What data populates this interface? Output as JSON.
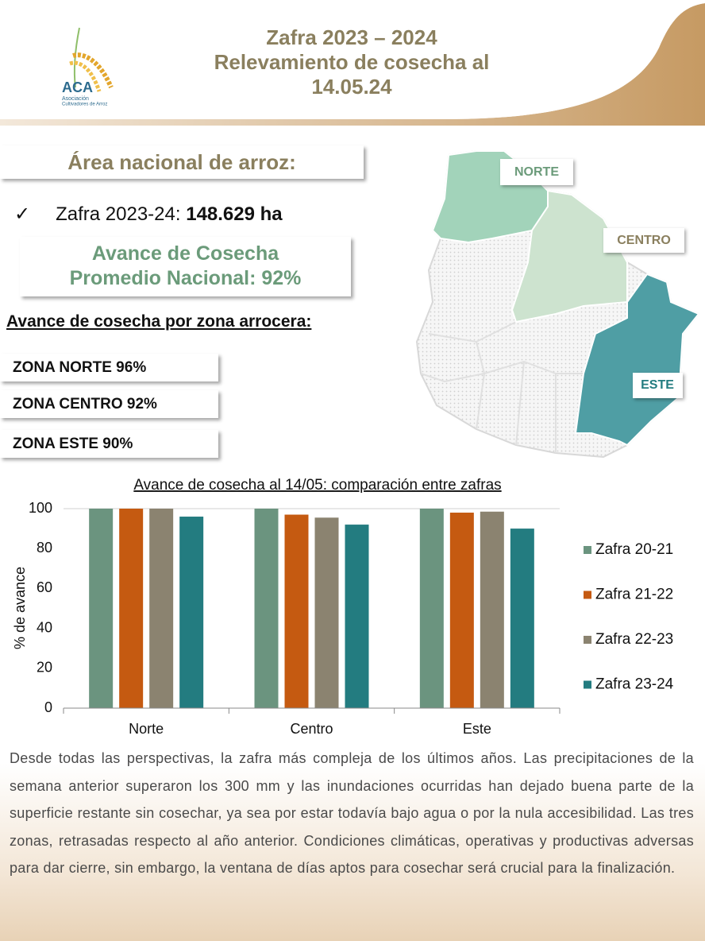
{
  "header": {
    "title_lines": [
      "Zafra 2023 – 2024",
      "Relevamiento de cosecha al",
      "14.05.24"
    ],
    "logo": {
      "name": "ACA",
      "subtitle_lines": [
        "Asociación",
        "Cultivadores de Arroz"
      ]
    }
  },
  "area": {
    "title": "Área nacional de arroz:",
    "check": "✓",
    "label": "Zafra 2023-24:",
    "value": "148.629 ha"
  },
  "average": {
    "lines": [
      "Avance de Cosecha",
      "Promedio Nacional: 92%"
    ]
  },
  "zones_title": "Avance de cosecha por zona arrocera:",
  "zones": [
    "ZONA NORTE 96%",
    "ZONA CENTRO 92%",
    "ZONA ESTE 90%"
  ],
  "map_labels": [
    "NORTE",
    "CENTRO",
    "ESTE"
  ],
  "chart_data": {
    "type": "bar",
    "title": "Avance de cosecha al 14/05: comparación entre zafras",
    "y_label": "% de avance",
    "categories": [
      "Norte",
      "Centro",
      "Este"
    ],
    "series": [
      {
        "name": "Zafra 20-21",
        "color": "#6b947f",
        "values": [
          100,
          100,
          100
        ]
      },
      {
        "name": "Zafra 21-22",
        "color": "#c55a11",
        "values": [
          100,
          97,
          98
        ]
      },
      {
        "name": "Zafra 22-23",
        "color": "#8b8370",
        "values": [
          100,
          95.5,
          98.5
        ]
      },
      {
        "name": "Zafra 23-24",
        "color": "#237c80",
        "values": [
          96,
          92,
          90
        ]
      }
    ],
    "ylim": [
      0,
      100
    ],
    "yticks": [
      0,
      20,
      40,
      60,
      80,
      100
    ],
    "grid": false,
    "legend": "right"
  },
  "paragraph": "Desde todas las perspectivas, la zafra más compleja de los últimos años. Las precipitaciones de la semana anterior superaron los 300 mm y las inundaciones ocurridas han dejado buena parte de la superficie restante sin cosechar, ya sea por estar todavía bajo agua o por la nula accesibilidad. Las tres zonas, retrasadas respecto al año anterior. Condiciones climáticas, operativas y productivas adversas para dar cierre, sin embargo, la ventana de días aptos para cosechar será crucial para la finalización."
}
